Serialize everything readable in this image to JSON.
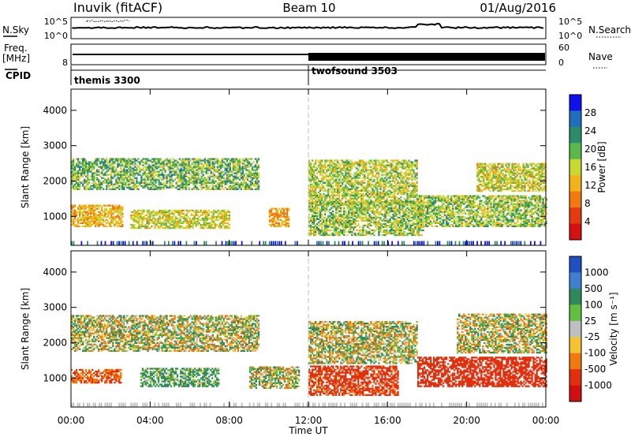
{
  "header": {
    "station": "Inuvik (fitACF)",
    "beam": "Beam 10",
    "date": "01/Aug/2016"
  },
  "strip": {
    "nsky_label": "N.Sky",
    "nsky_ticks": [
      "10^5",
      "10^0"
    ],
    "nsearch_label": "N.Search",
    "nsearch_ticks": [
      "10^5",
      "10^0"
    ],
    "freq_label": "Freq.",
    "freq_unit": "[MHz]",
    "freq_tick": "8",
    "nave_label": "Nave",
    "nave_ticks": [
      "60",
      "0"
    ],
    "cpid_label": "CPID",
    "cpid_programs": [
      {
        "name": "themis 3300",
        "start_hour": 0
      },
      {
        "name": "twofsound 3503",
        "start_hour": 12
      }
    ]
  },
  "chart_data": [
    {
      "type": "heatmap",
      "title": "",
      "xlabel": "",
      "ylabel": "Slant Range [km]",
      "xlim": [
        0,
        24
      ],
      "ylim": [
        180,
        4600
      ],
      "yticks": [
        "1000",
        "2000",
        "3000",
        "4000"
      ],
      "colorbar": {
        "label": "Power [dB]",
        "min": 0,
        "max": 32,
        "ticks": [
          "4",
          "8",
          "12",
          "16",
          "20",
          "24",
          "28"
        ],
        "colors": [
          "#1010ee",
          "#1f6fbf",
          "#2a8c6a",
          "#5bb84a",
          "#c8d832",
          "#f2b21a",
          "#f07a10",
          "#e33a10",
          "#d41010"
        ]
      },
      "echo_bands": [
        {
          "start_hour": 0.0,
          "end_hour": 9.5,
          "range_low_km": 1750,
          "range_high_km": 2650,
          "peak_db": 26
        },
        {
          "start_hour": 0.0,
          "end_hour": 2.6,
          "range_low_km": 700,
          "range_high_km": 1300,
          "peak_db": 16
        },
        {
          "start_hour": 3.0,
          "end_hour": 8.0,
          "range_low_km": 650,
          "range_high_km": 1150,
          "peak_db": 20
        },
        {
          "start_hour": 10.0,
          "end_hour": 11.0,
          "range_low_km": 700,
          "range_high_km": 1200,
          "peak_db": 14
        },
        {
          "start_hour": 12.0,
          "end_hour": 17.5,
          "range_low_km": 1300,
          "range_high_km": 2600,
          "peak_db": 22
        },
        {
          "start_hour": 12.0,
          "end_hour": 17.8,
          "range_low_km": 450,
          "range_high_km": 1400,
          "peak_db": 24
        },
        {
          "start_hour": 17.5,
          "end_hour": 24.0,
          "range_low_km": 700,
          "range_high_km": 1600,
          "peak_db": 24
        },
        {
          "start_hour": 20.5,
          "end_hour": 24.0,
          "range_low_km": 1700,
          "range_high_km": 2500,
          "peak_db": 20
        }
      ]
    },
    {
      "type": "heatmap",
      "title": "",
      "xlabel": "Time UT",
      "ylabel": "Slant Range [km]",
      "xlim": [
        0,
        24
      ],
      "ylim": [
        180,
        4600
      ],
      "xticks": [
        "00:00",
        "04:00",
        "08:00",
        "12:00",
        "16:00",
        "20:00",
        "00:00"
      ],
      "yticks": [
        "1000",
        "2000",
        "3000",
        "4000"
      ],
      "colorbar": {
        "label": "Velocity [m s⁻¹]",
        "ticks": [
          "1000",
          "500",
          "100",
          "25",
          "-25",
          "-100",
          "-500",
          "-1000"
        ],
        "colors": [
          "#1f4fc0",
          "#3f7fcf",
          "#2e8a5a",
          "#62bf40",
          "#bfbfbf",
          "#f4c232",
          "#f07a10",
          "#e0300e",
          "#d01010"
        ]
      },
      "echo_bands": [
        {
          "start_hour": 0.0,
          "end_hour": 9.5,
          "range_low_km": 1750,
          "range_high_km": 2750,
          "velocity_ms": 0
        },
        {
          "start_hour": 0.0,
          "end_hour": 2.5,
          "range_low_km": 850,
          "range_high_km": 1250,
          "velocity_ms": -300
        },
        {
          "start_hour": 3.5,
          "end_hour": 7.5,
          "range_low_km": 750,
          "range_high_km": 1250,
          "velocity_ms": 100
        },
        {
          "start_hour": 9.0,
          "end_hour": 11.5,
          "range_low_km": 700,
          "range_high_km": 1300,
          "velocity_ms": 0
        },
        {
          "start_hour": 12.0,
          "end_hour": 17.5,
          "range_low_km": 1400,
          "range_high_km": 2600,
          "velocity_ms": 0
        },
        {
          "start_hour": 12.0,
          "end_hour": 16.5,
          "range_low_km": 500,
          "range_high_km": 1350,
          "velocity_ms": -400
        },
        {
          "start_hour": 17.5,
          "end_hour": 24.0,
          "range_low_km": 750,
          "range_high_km": 1600,
          "velocity_ms": -450
        },
        {
          "start_hour": 19.5,
          "end_hour": 24.0,
          "range_low_km": 1700,
          "range_high_km": 2800,
          "velocity_ms": 0
        }
      ]
    }
  ]
}
